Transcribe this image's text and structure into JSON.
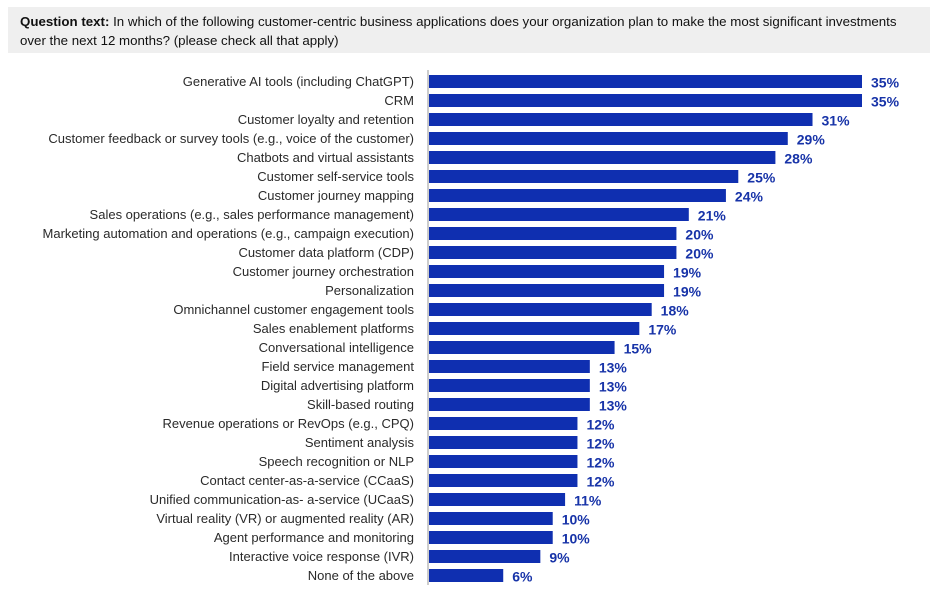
{
  "question": {
    "label": "Question text:",
    "text": " In which of the following customer-centric business applications does your organization plan to make the most significant investments over the next 12 months? (please check all that apply)"
  },
  "colors": {
    "bar": "#0f2fb0",
    "value_label": "#1733a8"
  },
  "chart_data": {
    "type": "bar",
    "orientation": "horizontal",
    "title": "",
    "xlabel": "",
    "ylabel": "",
    "value_suffix": "%",
    "xlim": [
      0,
      35
    ],
    "categories": [
      "Generative AI tools (including ChatGPT)",
      "CRM",
      "Customer loyalty and retention",
      "Customer feedback or survey tools (e.g., voice of the customer)",
      "Chatbots and virtual assistants",
      "Customer self-service tools",
      "Customer journey mapping",
      "Sales operations (e.g., sales performance management)",
      "Marketing automation and operations (e.g., campaign execution)",
      "Customer data platform (CDP)",
      "Customer journey orchestration",
      "Personalization",
      "Omnichannel customer engagement tools",
      "Sales enablement platforms",
      "Conversational intelligence",
      "Field service management",
      "Digital advertising platform",
      "Skill-based routing",
      "Revenue operations or RevOps (e.g., CPQ)",
      "Sentiment analysis",
      "Speech recognition or NLP",
      "Contact center-as-a-service (CCaaS)",
      "Unified communication-as- a-service (UCaaS)",
      "Virtual reality (VR) or augmented reality (AR)",
      "Agent performance and monitoring",
      "Interactive voice response (IVR)",
      "None of the above"
    ],
    "values": [
      35,
      35,
      31,
      29,
      28,
      25,
      24,
      21,
      20,
      20,
      19,
      19,
      18,
      17,
      15,
      13,
      13,
      13,
      12,
      12,
      12,
      12,
      11,
      10,
      10,
      9,
      6
    ],
    "value_labels": [
      "35%",
      "35%",
      "31%",
      "29%",
      "28%",
      "25%",
      "24%",
      "21%",
      "20%",
      "20%",
      "19%",
      "19%",
      "18%",
      "17%",
      "15%",
      "13%",
      "13%",
      "13%",
      "12%",
      "12%",
      "12%",
      "12%",
      "11%",
      "10%",
      "10%",
      "9%",
      "6%"
    ]
  }
}
